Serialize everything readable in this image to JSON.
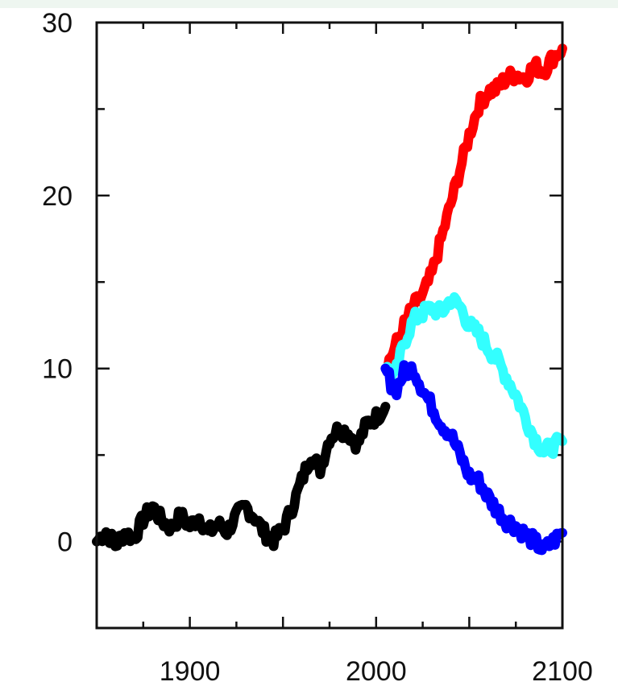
{
  "chart_data": {
    "type": "line",
    "title": "",
    "xlabel": "",
    "ylabel": "",
    "xlim": [
      1850,
      2100
    ],
    "ylim": [
      -5,
      30
    ],
    "x_ticks": [
      1900,
      2000,
      2100
    ],
    "y_ticks": [
      0,
      10,
      20,
      30
    ],
    "x_tick_labels": [
      "1900",
      "2000",
      "2100"
    ],
    "y_tick_labels": [
      "0",
      "10",
      "20",
      "30"
    ],
    "grid": false,
    "legend": "none",
    "series": [
      {
        "color": "#000000",
        "x": [
          1850,
          1855,
          1860,
          1865,
          1870,
          1875,
          1880,
          1885,
          1890,
          1895,
          1900,
          1905,
          1910,
          1915,
          1920,
          1925,
          1930,
          1935,
          1940,
          1945,
          1950,
          1955,
          1960,
          1965,
          1970,
          1975,
          1980,
          1985,
          1990,
          1995,
          2000,
          2005
        ],
        "y": [
          0.0,
          0.6,
          -0.2,
          0.5,
          0.2,
          1.3,
          2.0,
          1.2,
          0.8,
          1.5,
          0.9,
          1.4,
          0.5,
          1.0,
          0.6,
          1.5,
          2.0,
          1.4,
          0.5,
          0.1,
          0.7,
          2.0,
          3.5,
          5.0,
          4.2,
          6.0,
          6.5,
          6.3,
          5.6,
          6.8,
          7.2,
          7.8
        ]
      },
      {
        "color": "#ff0000",
        "x": [
          2005,
          2010,
          2015,
          2020,
          2025,
          2030,
          2035,
          2040,
          2045,
          2050,
          2055,
          2060,
          2065,
          2070,
          2075,
          2080,
          2085,
          2090,
          2095,
          2100
        ],
        "y": [
          10.0,
          11.2,
          12.5,
          13.6,
          14.2,
          15.5,
          17.5,
          19.5,
          21.5,
          23.5,
          25.2,
          26.0,
          26.2,
          26.8,
          27.0,
          26.8,
          27.5,
          27.2,
          28.0,
          28.5
        ]
      },
      {
        "color": "#33ffff",
        "x": [
          2005,
          2010,
          2015,
          2020,
          2025,
          2030,
          2035,
          2040,
          2045,
          2050,
          2055,
          2060,
          2065,
          2070,
          2075,
          2080,
          2085,
          2090,
          2095,
          2100
        ],
        "y": [
          10.0,
          9.5,
          11.5,
          12.8,
          13.2,
          13.5,
          13.2,
          14.0,
          13.6,
          12.5,
          12.0,
          11.2,
          10.5,
          9.5,
          8.5,
          7.2,
          6.0,
          5.2,
          5.5,
          5.8
        ]
      },
      {
        "color": "#0000ff",
        "x": [
          2005,
          2010,
          2015,
          2020,
          2025,
          2030,
          2035,
          2040,
          2045,
          2050,
          2055,
          2060,
          2065,
          2070,
          2075,
          2080,
          2085,
          2090,
          2095,
          2100
        ],
        "y": [
          10.0,
          8.6,
          9.8,
          10.0,
          8.8,
          7.8,
          6.8,
          6.2,
          5.0,
          3.8,
          3.5,
          2.6,
          1.8,
          1.2,
          0.9,
          0.4,
          0.0,
          -0.5,
          0.0,
          0.5
        ]
      }
    ]
  }
}
